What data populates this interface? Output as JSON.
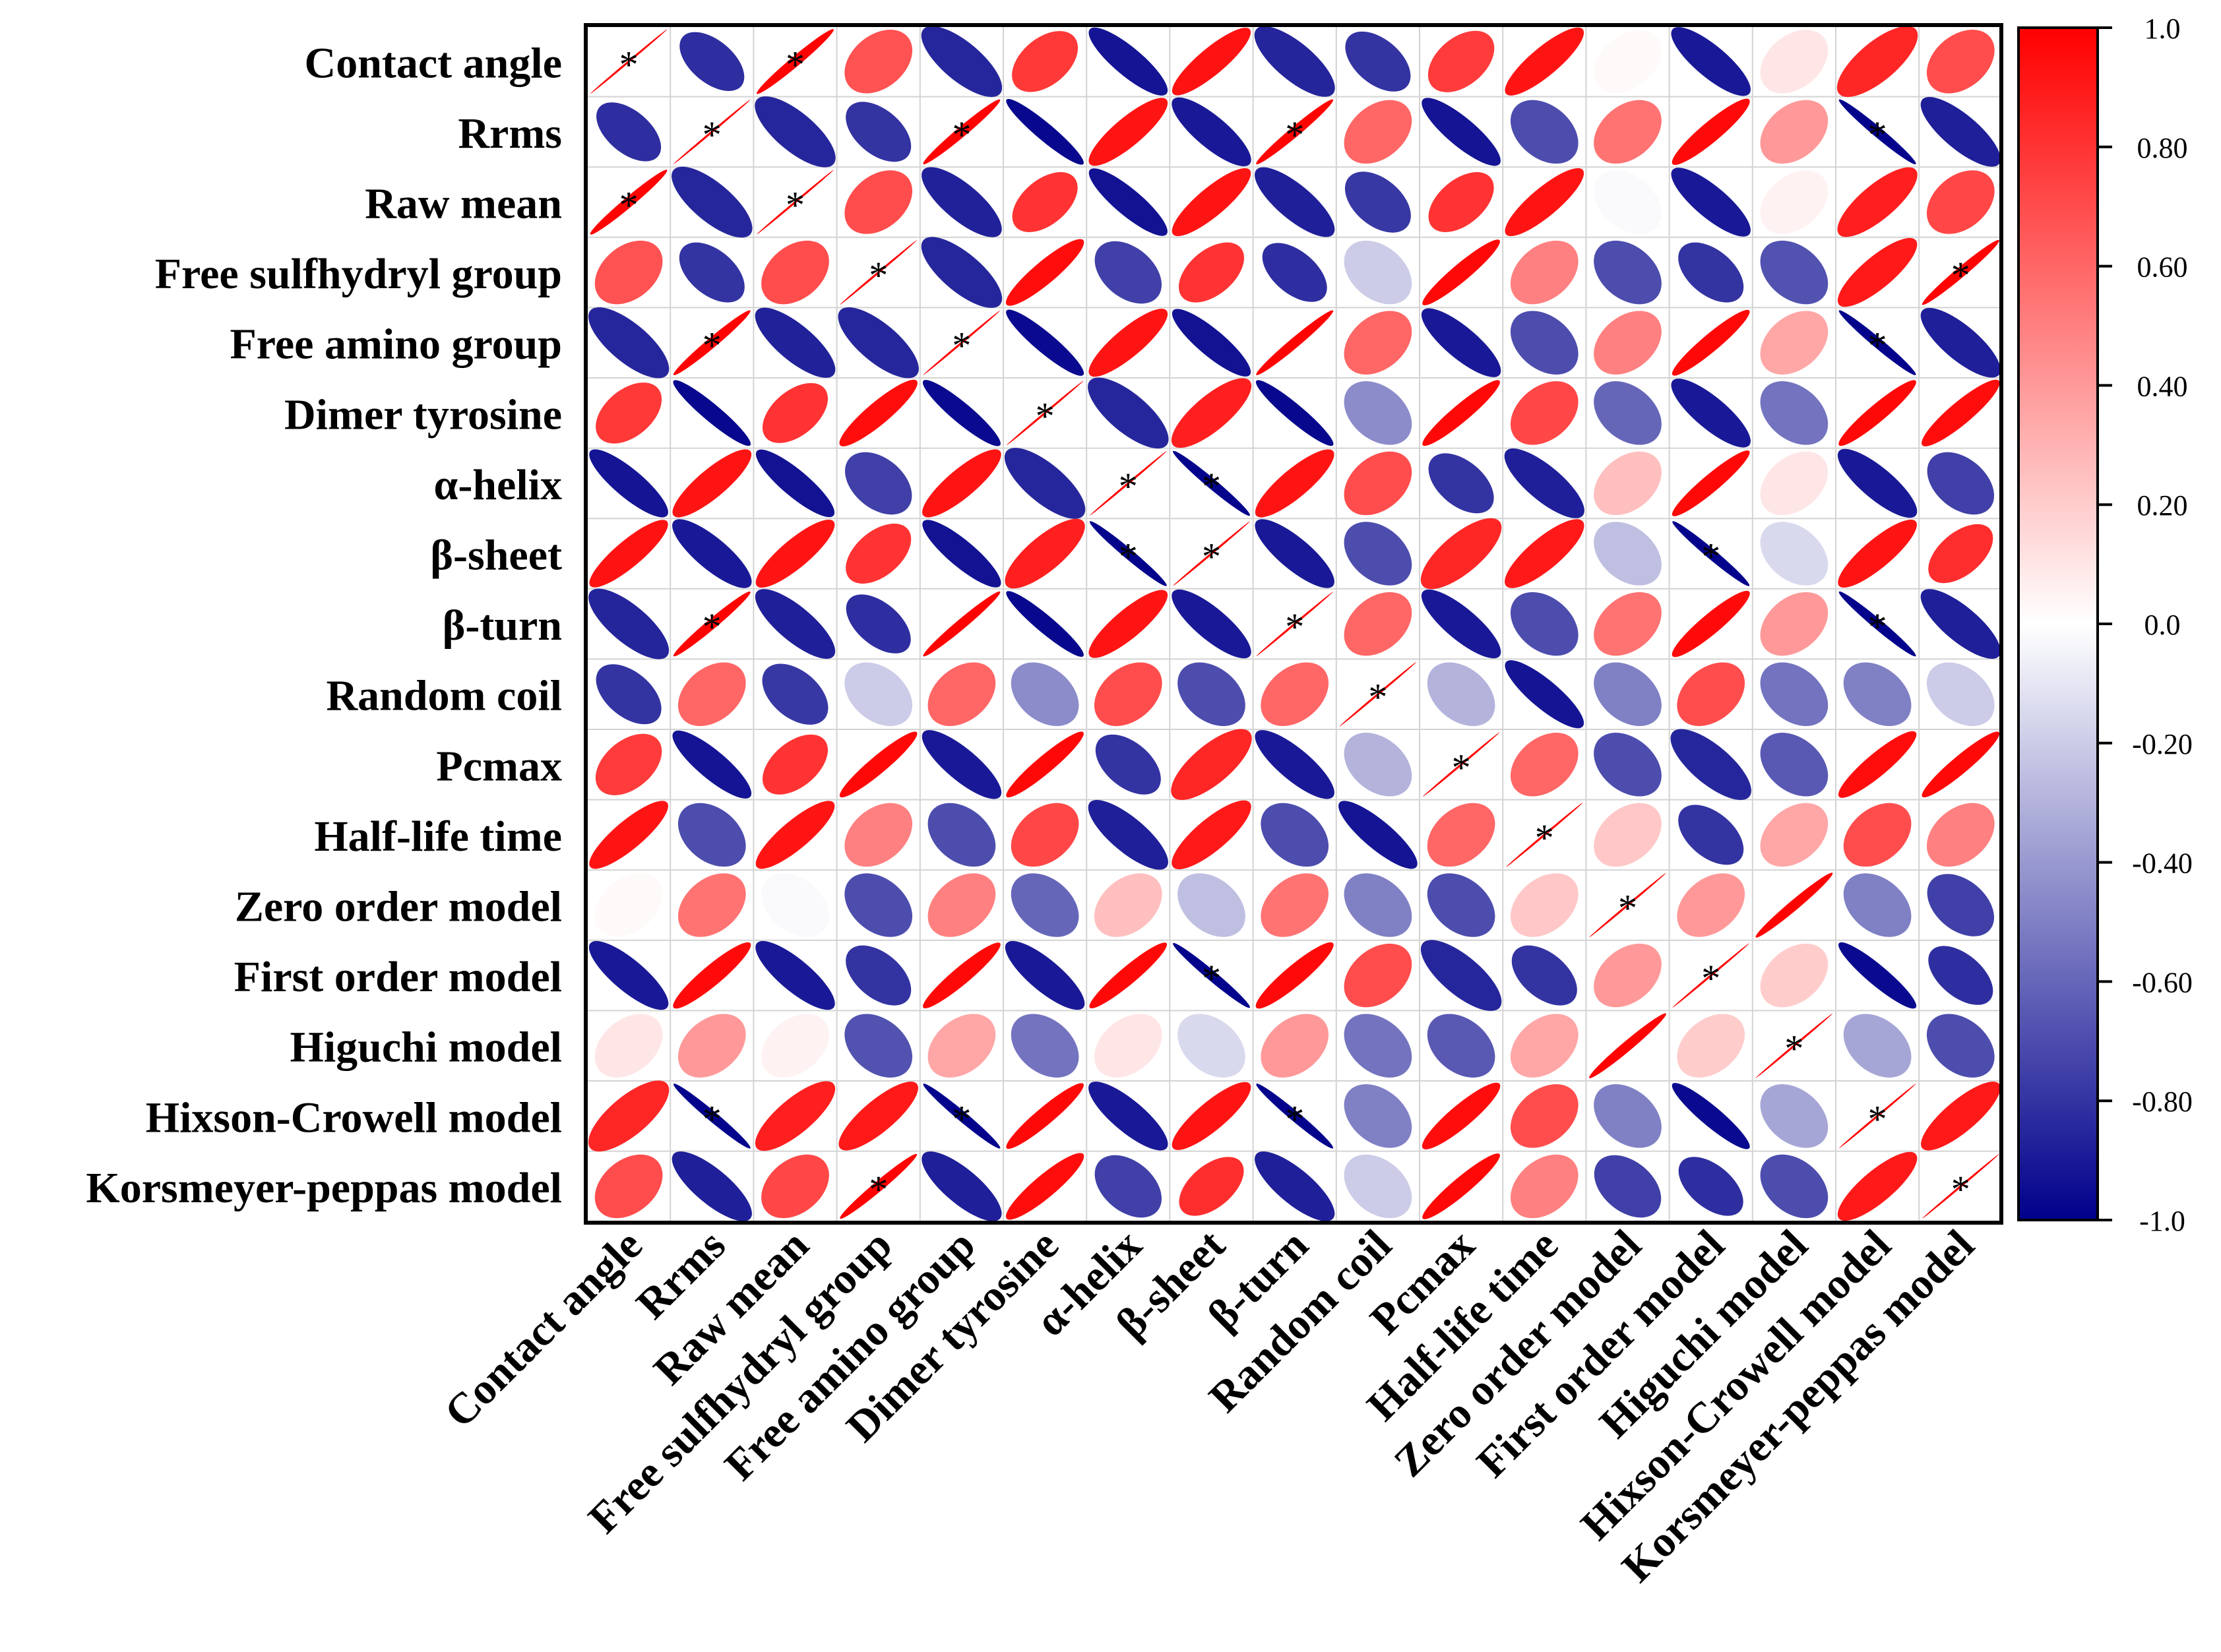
{
  "chart_data": {
    "type": "heatmap",
    "subtype": "correlation-ellipse-matrix",
    "variables": [
      "Contact angle",
      "Rrms",
      "Raw mean",
      "Free sulfhydryl group",
      "Free amino group",
      "Dimer tyrosine",
      "α-helix",
      "β-sheet",
      "β-turn",
      "Random coil",
      "Pcmax",
      "Half-life time",
      "Zero order model",
      "First order model",
      "Higuchi model",
      "Hixson-Crowell model",
      "Korsmeyer-peppas model"
    ],
    "matrix": [
      [
        1.0,
        -0.82,
        0.99,
        0.68,
        -0.85,
        0.78,
        -0.92,
        0.93,
        -0.86,
        -0.8,
        0.77,
        0.92,
        0.02,
        -0.9,
        0.1,
        0.85,
        0.7
      ],
      [
        -0.82,
        1.0,
        -0.85,
        -0.8,
        0.99,
        -0.97,
        0.92,
        -0.9,
        0.99,
        0.6,
        -0.92,
        -0.7,
        0.55,
        0.96,
        0.4,
        -0.99,
        -0.88
      ],
      [
        0.99,
        -0.85,
        1.0,
        0.7,
        -0.87,
        0.8,
        -0.93,
        0.92,
        -0.88,
        -0.78,
        0.8,
        0.92,
        -0.02,
        -0.9,
        0.05,
        0.88,
        0.72
      ],
      [
        0.68,
        -0.8,
        0.7,
        1.0,
        -0.85,
        0.95,
        -0.75,
        0.8,
        -0.82,
        -0.2,
        0.97,
        0.5,
        -0.7,
        -0.8,
        -0.68,
        0.9,
        0.99
      ],
      [
        -0.85,
        0.99,
        -0.87,
        -0.85,
        1.0,
        -0.96,
        0.92,
        -0.93,
        0.99,
        0.6,
        -0.9,
        -0.7,
        0.5,
        0.97,
        0.35,
        -0.99,
        -0.88
      ],
      [
        0.78,
        -0.97,
        0.8,
        0.95,
        -0.96,
        1.0,
        -0.85,
        0.88,
        -0.97,
        -0.45,
        0.97,
        0.72,
        -0.6,
        -0.9,
        -0.55,
        0.97,
        0.95
      ],
      [
        -0.92,
        0.92,
        -0.93,
        -0.75,
        0.92,
        -0.85,
        1.0,
        -0.99,
        0.92,
        0.7,
        -0.8,
        -0.88,
        0.25,
        0.97,
        0.1,
        -0.9,
        -0.75
      ],
      [
        0.93,
        -0.9,
        0.92,
        0.8,
        -0.93,
        0.88,
        -0.99,
        1.0,
        -0.9,
        -0.7,
        0.85,
        0.9,
        -0.25,
        -0.99,
        -0.15,
        0.92,
        0.82
      ],
      [
        -0.86,
        0.99,
        -0.88,
        -0.82,
        0.99,
        -0.97,
        0.92,
        -0.9,
        1.0,
        0.6,
        -0.9,
        -0.7,
        0.55,
        0.96,
        0.4,
        -0.99,
        -0.88
      ],
      [
        -0.8,
        0.6,
        -0.78,
        -0.2,
        0.6,
        -0.45,
        0.7,
        -0.7,
        0.6,
        1.0,
        -0.3,
        -0.92,
        -0.5,
        0.7,
        -0.55,
        -0.5,
        -0.2
      ],
      [
        0.77,
        -0.92,
        0.8,
        0.97,
        -0.9,
        0.97,
        -0.8,
        0.85,
        -0.9,
        -0.3,
        1.0,
        0.6,
        -0.7,
        -0.85,
        -0.65,
        0.95,
        0.97
      ],
      [
        0.92,
        -0.7,
        0.92,
        0.5,
        -0.7,
        0.72,
        -0.88,
        0.9,
        -0.7,
        -0.92,
        0.6,
        1.0,
        0.22,
        -0.8,
        0.35,
        0.7,
        0.5
      ],
      [
        0.02,
        0.55,
        -0.02,
        -0.7,
        0.5,
        -0.6,
        0.25,
        -0.25,
        0.55,
        -0.5,
        -0.7,
        0.22,
        1.0,
        0.4,
        0.99,
        -0.5,
        -0.75
      ],
      [
        -0.9,
        0.96,
        -0.9,
        -0.8,
        0.97,
        -0.9,
        0.97,
        -0.99,
        0.96,
        0.7,
        -0.85,
        -0.8,
        0.4,
        1.0,
        0.2,
        -0.96,
        -0.82
      ],
      [
        0.1,
        0.4,
        0.05,
        -0.68,
        0.35,
        -0.55,
        0.1,
        -0.15,
        0.4,
        -0.55,
        -0.65,
        0.35,
        0.99,
        0.2,
        1.0,
        -0.35,
        -0.7
      ],
      [
        0.85,
        -0.99,
        0.88,
        0.9,
        -0.99,
        0.97,
        -0.9,
        0.92,
        -0.99,
        -0.5,
        0.95,
        0.7,
        -0.5,
        -0.96,
        -0.35,
        1.0,
        0.9
      ],
      [
        0.7,
        -0.88,
        0.72,
        0.99,
        -0.88,
        0.95,
        -0.75,
        0.82,
        -0.88,
        -0.2,
        0.97,
        0.5,
        -0.75,
        -0.82,
        -0.7,
        0.9,
        1.0
      ]
    ],
    "significant": [
      [
        0,
        0
      ],
      [
        0,
        2
      ],
      [
        1,
        1
      ],
      [
        1,
        4
      ],
      [
        1,
        8
      ],
      [
        1,
        15
      ],
      [
        2,
        0
      ],
      [
        2,
        2
      ],
      [
        3,
        3
      ],
      [
        3,
        16
      ],
      [
        4,
        1
      ],
      [
        4,
        4
      ],
      [
        4,
        15
      ],
      [
        5,
        5
      ],
      [
        6,
        6
      ],
      [
        6,
        7
      ],
      [
        7,
        6
      ],
      [
        7,
        7
      ],
      [
        7,
        13
      ],
      [
        8,
        1
      ],
      [
        8,
        8
      ],
      [
        8,
        15
      ],
      [
        9,
        9
      ],
      [
        10,
        10
      ],
      [
        11,
        11
      ],
      [
        12,
        12
      ],
      [
        13,
        7
      ],
      [
        13,
        13
      ],
      [
        14,
        14
      ],
      [
        15,
        1
      ],
      [
        15,
        4
      ],
      [
        15,
        8
      ],
      [
        15,
        15
      ],
      [
        16,
        3
      ],
      [
        16,
        16
      ]
    ],
    "significance_marker": "*",
    "colorbar": {
      "min": -1.0,
      "max": 1.0,
      "ticks": [
        "1.0",
        "0.80",
        "0.60",
        "0.40",
        "0.20",
        "0.0",
        "-0.20",
        "-0.40",
        "-0.60",
        "-0.80",
        "-1.0"
      ],
      "colors": {
        "negative": "#00008B",
        "zero": "#FFFFFF",
        "positive": "#FF0000"
      },
      "placement": "right"
    },
    "grid": true
  }
}
